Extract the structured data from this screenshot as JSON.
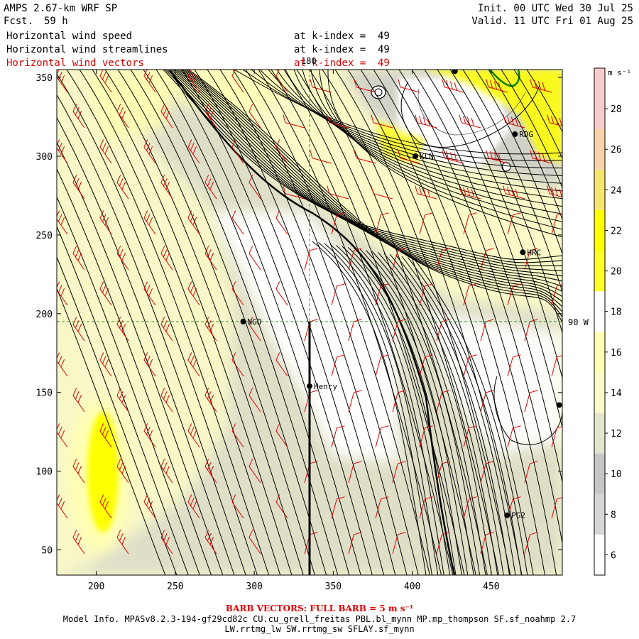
{
  "header": {
    "model_title": "AMPS 2.67-km WRF SP",
    "forecast_label": "Fcst.",
    "forecast_hour": "59 h",
    "init": "Init. 00 UTC Wed 30 Jul 25",
    "valid": "Valid. 11 UTC Fri 01 Aug 25",
    "fields": [
      {
        "name": "Horizontal wind speed",
        "level": "at k-index =  49"
      },
      {
        "name": "Horizontal wind streamlines",
        "level": "at k-index =  49"
      },
      {
        "name": "Horizontal wind vectors",
        "level": "at k-index =  49"
      }
    ]
  },
  "map": {
    "x_ticks": [
      "200",
      "250",
      "300",
      "350",
      "400",
      "450"
    ],
    "x_tick_values": [
      200,
      250,
      300,
      350,
      400,
      450
    ],
    "y_ticks": [
      "50",
      "100",
      "150",
      "200",
      "250",
      "300",
      "350"
    ],
    "y_tick_values": [
      50,
      100,
      150,
      200,
      250,
      300,
      350
    ],
    "x_range": [
      175,
      495
    ],
    "y_range": [
      34,
      355
    ],
    "meridian_label": "180",
    "meridian_x": 335,
    "parallel_label": "90 W",
    "parallel_y": 195,
    "stations": [
      {
        "name": "RDG",
        "x": 465,
        "y": 314
      },
      {
        "name": "KLN",
        "x": 402,
        "y": 300
      },
      {
        "name": "HRC",
        "x": 470,
        "y": 239
      },
      {
        "name": "NGO",
        "x": 293,
        "y": 195
      },
      {
        "name": "Henry",
        "x": 335,
        "y": 154
      },
      {
        "name": "PG2",
        "x": 460,
        "y": 72
      }
    ],
    "unlabeled_points": [
      {
        "x": 427,
        "y": 354
      },
      {
        "x": 493,
        "y": 142
      }
    ]
  },
  "colorbar": {
    "unit": "m s⁻¹",
    "labels": [
      "6",
      "8",
      "10",
      "12",
      "14",
      "16",
      "18",
      "20",
      "22",
      "24",
      "26",
      "28"
    ],
    "bands": [
      {
        "from": 5,
        "to": 7,
        "color": "#ffffff"
      },
      {
        "from": 7,
        "to": 9,
        "color": "#d6d6d6"
      },
      {
        "from": 9,
        "to": 11,
        "color": "#c6c6c6"
      },
      {
        "from": 11,
        "to": 13,
        "color": "#e4e4cf"
      },
      {
        "from": 13,
        "to": 15,
        "color": "#fafac8"
      },
      {
        "from": 15,
        "to": 17,
        "color": "#ffffb4"
      },
      {
        "from": 17,
        "to": 19,
        "color": "#ffffff"
      },
      {
        "from": 19,
        "to": 21,
        "color": "#ffff28"
      },
      {
        "from": 21,
        "to": 23,
        "color": "#ffff00"
      },
      {
        "from": 23,
        "to": 25,
        "color": "#f5e66e"
      },
      {
        "from": 25,
        "to": 27,
        "color": "#fad2aa"
      },
      {
        "from": 27,
        "to": 30,
        "color": "#f8cccc"
      }
    ]
  },
  "footer": {
    "barb_note": "BARB VECTORS:  FULL BARB = 5 m s⁻¹",
    "model_info_line1": "Model Info. MPASv8.2.3-194-gf29cd82c CU.cu_grell_freitas PBL.bl_mynn MP.mp_thompson SF.sf_noahmp 2.7",
    "model_info_line2": "LW.rrtmg_lw SW.rrtmg_sw SFLAY.sf_mynn"
  },
  "colors": {
    "barb": "#e00000",
    "streamline": "#000000",
    "gridline": "#008000",
    "light_shade": "#fafac8",
    "mid_shade": "#ffffb4",
    "grey_shade": "#c8c8c8",
    "strong_shade": "#ffff00",
    "coast": "#008000"
  }
}
